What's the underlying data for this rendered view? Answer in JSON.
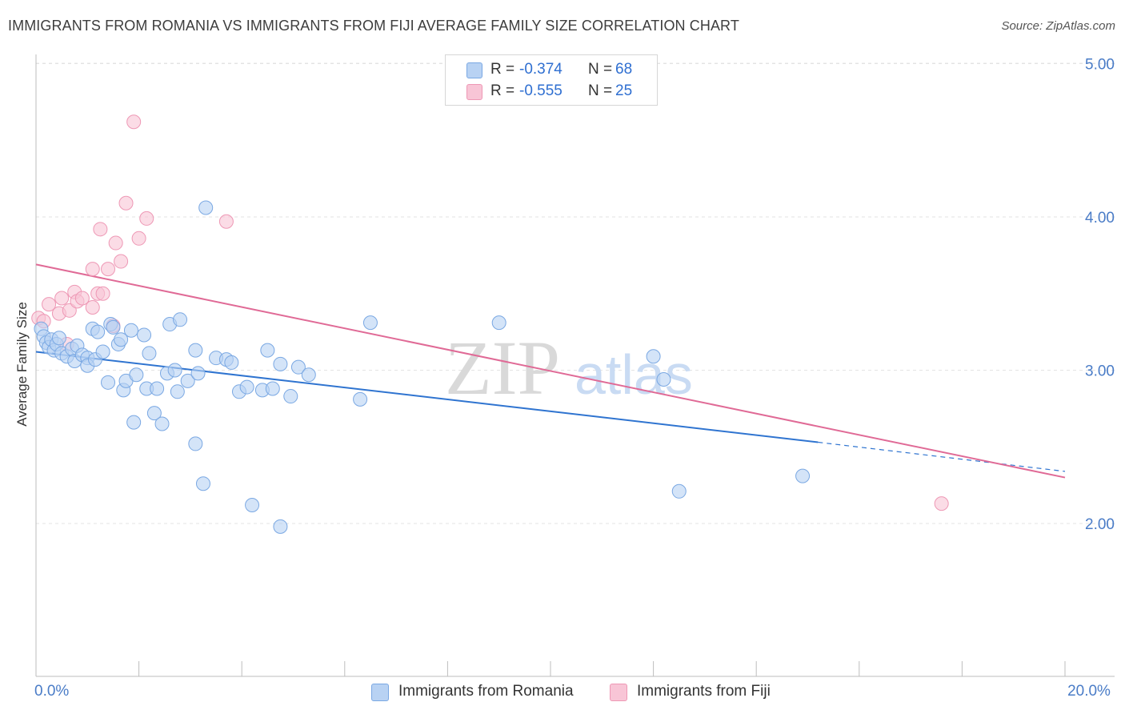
{
  "title": "IMMIGRANTS FROM ROMANIA VS IMMIGRANTS FROM FIJI AVERAGE FAMILY SIZE CORRELATION CHART",
  "source": "Source: ZipAtlas.com",
  "watermark": {
    "zip": "ZIP",
    "atlas": "atlas"
  },
  "legend": {
    "r_label": "R =",
    "n_label": "N =",
    "rows": [
      {
        "r": "-0.374",
        "n": "68"
      },
      {
        "r": "-0.555",
        "n": "25"
      }
    ]
  },
  "colors": {
    "romania_fill": "#b8d2f3",
    "romania_stroke": "#7aa8e3",
    "romania_line": "#2f74d0",
    "fiji_fill": "#f8c5d6",
    "fiji_stroke": "#ee98b5",
    "fiji_line": "#e06a96",
    "grid": "#e3e3e3",
    "tick_text": "#4a7cc7"
  },
  "chart_data": {
    "type": "scatter",
    "title": "IMMIGRANTS FROM ROMANIA VS IMMIGRANTS FROM FIJI AVERAGE FAMILY SIZE CORRELATION CHART",
    "xlabel": "",
    "ylabel": "Average Family Size",
    "xlim": [
      0,
      20
    ],
    "ylim": [
      1.0,
      5.1
    ],
    "x_tick_labels": [
      {
        "value": 0,
        "label": "0.0%"
      },
      {
        "value": 20,
        "label": "20.0%"
      }
    ],
    "y_ticks": [
      {
        "value": 5.0,
        "label": "5.00"
      },
      {
        "value": 4.0,
        "label": "4.00"
      },
      {
        "value": 3.0,
        "label": "3.00"
      },
      {
        "value": 2.0,
        "label": "2.00"
      }
    ],
    "grid": "horizontal dashed",
    "legend_position": "bottom",
    "series": [
      {
        "name": "Immigrants from Romania",
        "R": -0.374,
        "N": 68,
        "trend": {
          "x0": 0.0,
          "y0": 3.12,
          "x1": 15.2,
          "y1": 2.53,
          "dash_to_x": 20.0,
          "dash_to_y": 2.34
        },
        "points": [
          [
            0.1,
            3.27
          ],
          [
            0.15,
            3.22
          ],
          [
            0.2,
            3.18
          ],
          [
            0.25,
            3.15
          ],
          [
            0.3,
            3.2
          ],
          [
            0.35,
            3.13
          ],
          [
            0.4,
            3.17
          ],
          [
            0.45,
            3.21
          ],
          [
            0.5,
            3.11
          ],
          [
            0.6,
            3.09
          ],
          [
            0.7,
            3.14
          ],
          [
            0.75,
            3.06
          ],
          [
            0.8,
            3.16
          ],
          [
            0.9,
            3.1
          ],
          [
            1.0,
            3.08
          ],
          [
            1.0,
            3.03
          ],
          [
            1.1,
            3.27
          ],
          [
            1.15,
            3.07
          ],
          [
            1.2,
            3.25
          ],
          [
            1.3,
            3.12
          ],
          [
            1.4,
            2.92
          ],
          [
            1.45,
            3.3
          ],
          [
            1.5,
            3.28
          ],
          [
            1.6,
            3.17
          ],
          [
            1.65,
            3.2
          ],
          [
            1.7,
            2.87
          ],
          [
            1.75,
            2.93
          ],
          [
            1.85,
            3.26
          ],
          [
            1.9,
            2.66
          ],
          [
            1.95,
            2.97
          ],
          [
            2.1,
            3.23
          ],
          [
            2.15,
            2.88
          ],
          [
            2.2,
            3.11
          ],
          [
            2.3,
            2.72
          ],
          [
            2.35,
            2.88
          ],
          [
            2.45,
            2.65
          ],
          [
            2.55,
            2.98
          ],
          [
            2.6,
            3.3
          ],
          [
            2.7,
            3.0
          ],
          [
            2.75,
            2.86
          ],
          [
            2.8,
            3.33
          ],
          [
            2.95,
            2.93
          ],
          [
            3.1,
            3.13
          ],
          [
            3.1,
            2.52
          ],
          [
            3.15,
            2.98
          ],
          [
            3.25,
            2.26
          ],
          [
            3.3,
            4.06
          ],
          [
            3.5,
            3.08
          ],
          [
            3.7,
            3.07
          ],
          [
            3.8,
            3.05
          ],
          [
            3.95,
            2.86
          ],
          [
            4.1,
            2.89
          ],
          [
            4.2,
            2.12
          ],
          [
            4.4,
            2.87
          ],
          [
            4.5,
            3.13
          ],
          [
            4.6,
            2.88
          ],
          [
            4.75,
            1.98
          ],
          [
            4.75,
            3.04
          ],
          [
            4.95,
            2.83
          ],
          [
            5.1,
            3.02
          ],
          [
            5.3,
            2.97
          ],
          [
            6.3,
            2.81
          ],
          [
            6.5,
            3.31
          ],
          [
            9.0,
            3.31
          ],
          [
            12.0,
            3.09
          ],
          [
            12.2,
            2.94
          ],
          [
            12.5,
            2.21
          ],
          [
            14.9,
            2.31
          ]
        ]
      },
      {
        "name": "Immigrants from Fiji",
        "R": -0.555,
        "N": 25,
        "trend": {
          "x0": 0.0,
          "y0": 3.69,
          "x1": 20.0,
          "y1": 2.3
        },
        "points": [
          [
            0.05,
            3.34
          ],
          [
            0.15,
            3.32
          ],
          [
            0.25,
            3.43
          ],
          [
            0.45,
            3.37
          ],
          [
            0.5,
            3.47
          ],
          [
            0.6,
            3.17
          ],
          [
            0.65,
            3.39
          ],
          [
            0.75,
            3.51
          ],
          [
            0.8,
            3.45
          ],
          [
            0.9,
            3.47
          ],
          [
            1.1,
            3.41
          ],
          [
            1.1,
            3.66
          ],
          [
            1.2,
            3.5
          ],
          [
            1.25,
            3.92
          ],
          [
            1.3,
            3.5
          ],
          [
            1.4,
            3.66
          ],
          [
            1.5,
            3.29
          ],
          [
            1.55,
            3.83
          ],
          [
            1.65,
            3.71
          ],
          [
            1.75,
            4.09
          ],
          [
            1.9,
            4.62
          ],
          [
            2.0,
            3.86
          ],
          [
            2.15,
            3.99
          ],
          [
            3.7,
            3.97
          ],
          [
            17.6,
            2.13
          ]
        ]
      }
    ]
  }
}
